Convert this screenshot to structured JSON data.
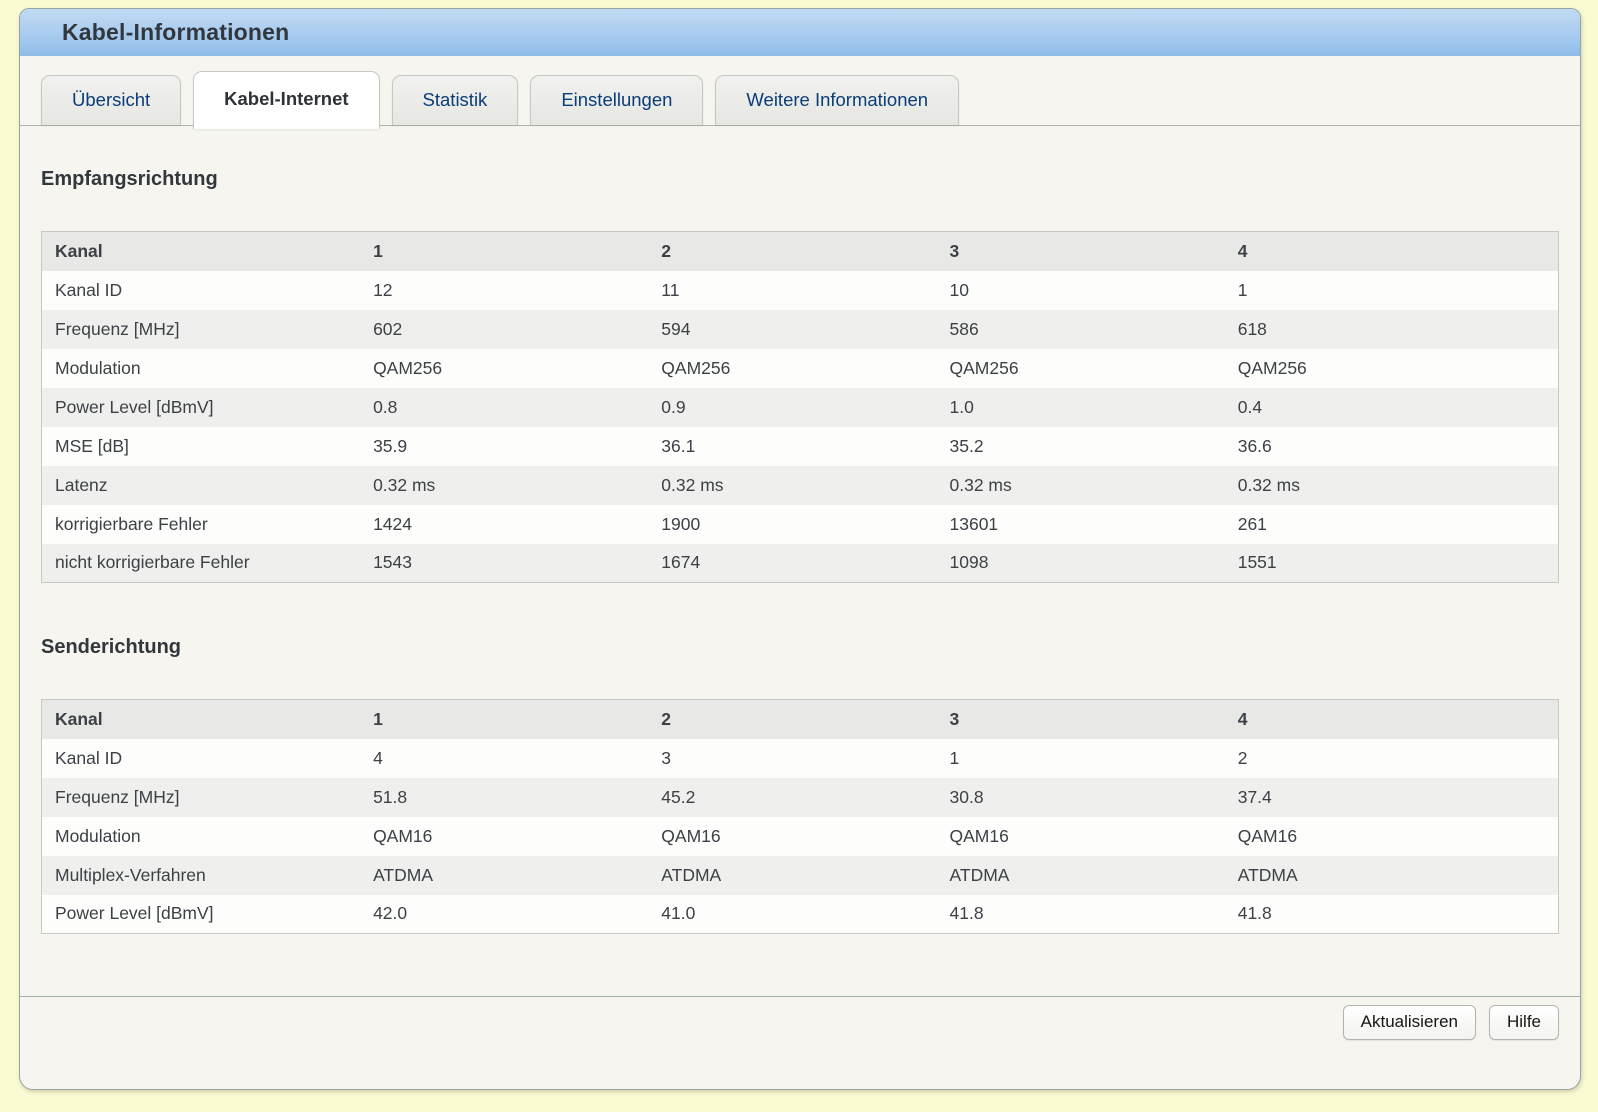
{
  "window": {
    "title": "Kabel-Informationen"
  },
  "tabs": [
    {
      "id": "uebersicht",
      "label": "Übersicht",
      "active": false
    },
    {
      "id": "kabel-internet",
      "label": "Kabel-Internet",
      "active": true
    },
    {
      "id": "statistik",
      "label": "Statistik",
      "active": false
    },
    {
      "id": "einstellungen",
      "label": "Einstellungen",
      "active": false
    },
    {
      "id": "weitere-informationen",
      "label": "Weitere Informationen",
      "active": false
    }
  ],
  "sections": [
    {
      "id": "empfangsrichtung",
      "heading": "Empfangsrichtung",
      "table": {
        "header": [
          "Kanal",
          "1",
          "2",
          "3",
          "4"
        ],
        "rows": [
          [
            "Kanal ID",
            "12",
            "11",
            "10",
            "1"
          ],
          [
            "Frequenz [MHz]",
            "602",
            "594",
            "586",
            "618"
          ],
          [
            "Modulation",
            "QAM256",
            "QAM256",
            "QAM256",
            "QAM256"
          ],
          [
            "Power Level [dBmV]",
            "0.8",
            "0.9",
            "1.0",
            "0.4"
          ],
          [
            "MSE [dB]",
            "35.9",
            "36.1",
            "35.2",
            "36.6"
          ],
          [
            "Latenz",
            "0.32 ms",
            "0.32 ms",
            "0.32 ms",
            "0.32 ms"
          ],
          [
            "korrigierbare Fehler",
            "1424",
            "1900",
            "13601",
            "261"
          ],
          [
            "nicht korrigierbare Fehler",
            "1543",
            "1674",
            "1098",
            "1551"
          ]
        ]
      }
    },
    {
      "id": "senderichtung",
      "heading": "Senderichtung",
      "table": {
        "header": [
          "Kanal",
          "1",
          "2",
          "3",
          "4"
        ],
        "rows": [
          [
            "Kanal ID",
            "4",
            "3",
            "1",
            "2"
          ],
          [
            "Frequenz [MHz]",
            "51.8",
            "45.2",
            "30.8",
            "37.4"
          ],
          [
            "Modulation",
            "QAM16",
            "QAM16",
            "QAM16",
            "QAM16"
          ],
          [
            "Multiplex-Verfahren",
            "ATDMA",
            "ATDMA",
            "ATDMA",
            "ATDMA"
          ],
          [
            "Power Level [dBmV]",
            "42.0",
            "41.0",
            "41.8",
            "41.8"
          ]
        ]
      }
    }
  ],
  "footer": {
    "buttons": [
      {
        "id": "aktualisieren",
        "label": "Aktualisieren"
      },
      {
        "id": "hilfe",
        "label": "Hilfe"
      }
    ]
  },
  "colors": {
    "page_bg": "#fbfbd3",
    "panel_bg": "#f6f5f0",
    "panel_border": "#97a5a5",
    "header_blue_top": "#c2dbf4",
    "header_blue_bottom": "#9ac3ec",
    "tab_text": "#0b3d78",
    "active_tab_text": "#2e3338",
    "heading_text": "#32373c",
    "cell_text": "#3c4146",
    "row_alt_bg": "#efefed",
    "table_header_bg": "#e8e8e6"
  }
}
